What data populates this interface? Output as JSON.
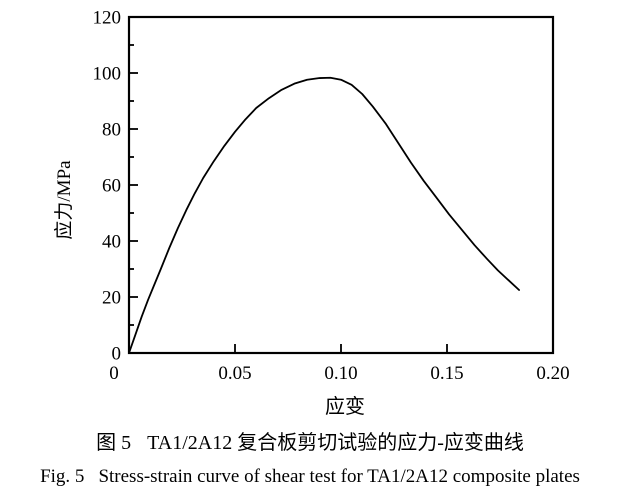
{
  "figure": {
    "caption_zh_prefix": "图 5",
    "caption_zh_text": "TA1/2A12 复合板剪切试验的应力-应变曲线",
    "caption_en_prefix": "Fig. 5",
    "caption_en_text": "Stress-strain curve of shear test for TA1/2A12 composite plates"
  },
  "chart_data": {
    "type": "line",
    "title": "",
    "xlabel": "应变",
    "ylabel": "应力/MPa",
    "xlim": [
      0,
      0.2
    ],
    "ylim": [
      0,
      120
    ],
    "x_ticks": [
      0.05,
      0.1,
      0.15
    ],
    "x_tick_labels": [
      "0",
      "0.05",
      "0.10",
      "0.15",
      "0.20"
    ],
    "x_tick_label_values": [
      0,
      0.05,
      0.1,
      0.15,
      0.2
    ],
    "y_ticks": [
      0,
      20,
      40,
      60,
      80,
      100,
      120
    ],
    "y_tick_labels": [
      "0",
      "20",
      "40",
      "60",
      "80",
      "100",
      "120"
    ],
    "y_minor_ticks": [
      10,
      30,
      50,
      70,
      90,
      110
    ],
    "grid": false,
    "legend": null,
    "line_color": "#000000",
    "frame_color": "#000000",
    "background_color": "#ffffff",
    "series": [
      {
        "name": "TA1/2A12 shear stress-strain curve",
        "x": [
          0,
          0.003,
          0.006,
          0.009,
          0.012,
          0.015,
          0.019,
          0.023,
          0.027,
          0.031,
          0.035,
          0.04,
          0.045,
          0.05,
          0.055,
          0.06,
          0.066,
          0.072,
          0.078,
          0.084,
          0.09,
          0.095,
          0.1,
          0.105,
          0.11,
          0.115,
          0.121,
          0.127,
          0.133,
          0.139,
          0.145,
          0.151,
          0.157,
          0.163,
          0.169,
          0.174,
          0.179,
          0.184
        ],
        "y": [
          0,
          6.5,
          13.0,
          19.0,
          24.5,
          30.0,
          37.5,
          44.5,
          51.0,
          57.0,
          62.5,
          68.5,
          74.0,
          79.0,
          83.5,
          87.5,
          91.0,
          94.0,
          96.2,
          97.6,
          98.2,
          98.3,
          97.6,
          95.8,
          92.5,
          88.0,
          82.0,
          75.0,
          68.0,
          61.5,
          55.5,
          49.5,
          44.0,
          38.5,
          33.5,
          29.5,
          26.0,
          22.5
        ]
      }
    ]
  }
}
